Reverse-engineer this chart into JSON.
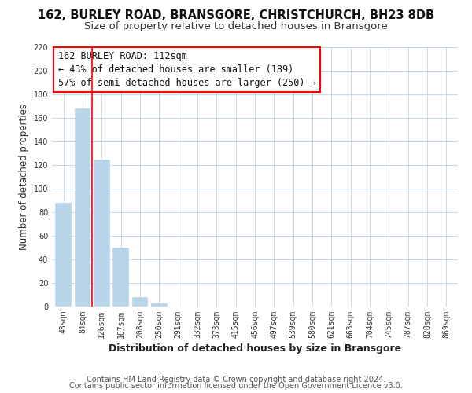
{
  "title": "162, BURLEY ROAD, BRANSGORE, CHRISTCHURCH, BH23 8DB",
  "subtitle": "Size of property relative to detached houses in Bransgore",
  "xlabel": "Distribution of detached houses by size in Bransgore",
  "ylabel": "Number of detached properties",
  "bar_labels": [
    "43sqm",
    "84sqm",
    "126sqm",
    "167sqm",
    "208sqm",
    "250sqm",
    "291sqm",
    "332sqm",
    "373sqm",
    "415sqm",
    "456sqm",
    "497sqm",
    "539sqm",
    "580sqm",
    "621sqm",
    "663sqm",
    "704sqm",
    "745sqm",
    "787sqm",
    "828sqm",
    "869sqm"
  ],
  "bar_values": [
    88,
    168,
    125,
    50,
    8,
    3,
    0,
    0,
    0,
    0,
    0,
    0,
    0,
    0,
    0,
    0,
    0,
    0,
    0,
    0,
    0
  ],
  "bar_color": "#b8d4e8",
  "red_line_x": 1.5,
  "annotation_line1": "162 BURLEY ROAD: 112sqm",
  "annotation_line2": "← 43% of detached houses are smaller (189)",
  "annotation_line3": "57% of semi-detached houses are larger (250) →",
  "ylim": [
    0,
    220
  ],
  "yticks": [
    0,
    20,
    40,
    60,
    80,
    100,
    120,
    140,
    160,
    180,
    200,
    220
  ],
  "footer_line1": "Contains HM Land Registry data © Crown copyright and database right 2024.",
  "footer_line2": "Contains public sector information licensed under the Open Government Licence v3.0.",
  "background_color": "#ffffff",
  "grid_color": "#c8d8e8",
  "title_fontsize": 10.5,
  "subtitle_fontsize": 9.5,
  "xlabel_fontsize": 9,
  "ylabel_fontsize": 8.5,
  "tick_fontsize": 7,
  "annotation_fontsize": 8.5,
  "footer_fontsize": 7
}
